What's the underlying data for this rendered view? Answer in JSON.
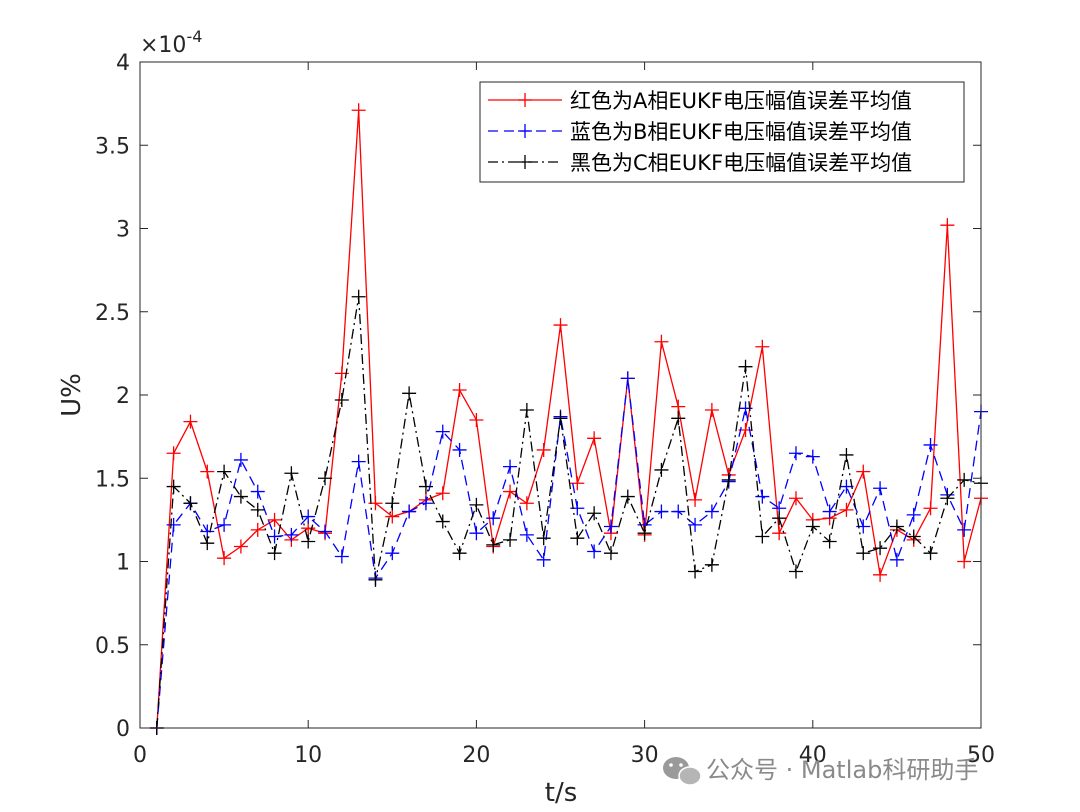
{
  "chart_data": {
    "type": "line",
    "title": "",
    "xlabel": "t/s",
    "ylabel": "U%",
    "y_exponent_label": "×10",
    "y_exponent_power": "-4",
    "xlim": [
      0,
      50
    ],
    "ylim": [
      0,
      4
    ],
    "xticks": [
      0,
      10,
      20,
      30,
      40,
      50
    ],
    "xtick_labels": [
      "0",
      "10",
      "20",
      "30",
      "40",
      "50"
    ],
    "yticks": [
      0,
      0.5,
      1,
      1.5,
      2,
      2.5,
      3,
      3.5,
      4
    ],
    "ytick_labels": [
      "0",
      "0.5",
      "1",
      "1.5",
      "2",
      "2.5",
      "3",
      "3.5",
      "4"
    ],
    "legend_position": "top-right",
    "x": [
      1,
      2,
      3,
      4,
      5,
      6,
      7,
      8,
      9,
      10,
      11,
      12,
      13,
      14,
      15,
      16,
      17,
      18,
      19,
      20,
      21,
      22,
      23,
      24,
      25,
      26,
      27,
      28,
      29,
      30,
      31,
      32,
      33,
      34,
      35,
      36,
      37,
      38,
      39,
      40,
      41,
      42,
      43,
      44,
      45,
      46,
      47,
      48,
      49,
      50
    ],
    "series": [
      {
        "name": "红色为A相EUKF电压幅值误差平均值",
        "color": "#ff0000",
        "style": "solid",
        "values": [
          0,
          1.65,
          1.84,
          1.54,
          1.02,
          1.09,
          1.19,
          1.25,
          1.13,
          1.2,
          1.17,
          2.13,
          3.71,
          1.35,
          1.27,
          1.3,
          1.37,
          1.41,
          2.03,
          1.85,
          1.09,
          1.42,
          1.35,
          1.67,
          2.42,
          1.47,
          1.74,
          1.17,
          2.1,
          1.16,
          2.32,
          1.93,
          1.37,
          1.91,
          1.52,
          1.79,
          2.29,
          1.17,
          1.38,
          1.25,
          1.26,
          1.31,
          1.54,
          0.92,
          1.19,
          1.13,
          1.32,
          3.02,
          1.0,
          1.38
        ]
      },
      {
        "name": "蓝色为B相EUKF电压幅值误差平均值",
        "color": "#0000ff",
        "style": "dashed",
        "values": [
          0,
          1.22,
          1.35,
          1.18,
          1.22,
          1.61,
          1.42,
          1.15,
          1.16,
          1.27,
          1.18,
          1.03,
          1.6,
          0.9,
          1.05,
          1.3,
          1.35,
          1.78,
          1.67,
          1.17,
          1.26,
          1.57,
          1.16,
          1.01,
          1.87,
          1.32,
          1.06,
          1.21,
          2.1,
          1.22,
          1.3,
          1.3,
          1.22,
          1.3,
          1.48,
          1.92,
          1.39,
          1.32,
          1.65,
          1.63,
          1.3,
          1.45,
          1.21,
          1.44,
          1.01,
          1.28,
          1.7,
          1.4,
          1.19,
          1.9
        ]
      },
      {
        "name": "黑色为C相EUKF电压幅值误差平均值",
        "color": "#000000",
        "style": "dashdot",
        "values": [
          0,
          1.45,
          1.35,
          1.11,
          1.54,
          1.39,
          1.31,
          1.05,
          1.53,
          1.12,
          1.5,
          1.97,
          2.59,
          0.89,
          1.35,
          2.01,
          1.45,
          1.24,
          1.05,
          1.34,
          1.1,
          1.13,
          1.91,
          1.14,
          1.86,
          1.14,
          1.29,
          1.05,
          1.39,
          1.17,
          1.55,
          1.86,
          0.94,
          0.98,
          1.49,
          2.17,
          1.15,
          1.26,
          0.94,
          1.21,
          1.12,
          1.64,
          1.05,
          1.08,
          1.21,
          1.15,
          1.05,
          1.38,
          1.49,
          1.47
        ]
      }
    ]
  },
  "watermark": {
    "text": "公众号 · Matlab科研助手",
    "icon": "wechat-icon"
  }
}
